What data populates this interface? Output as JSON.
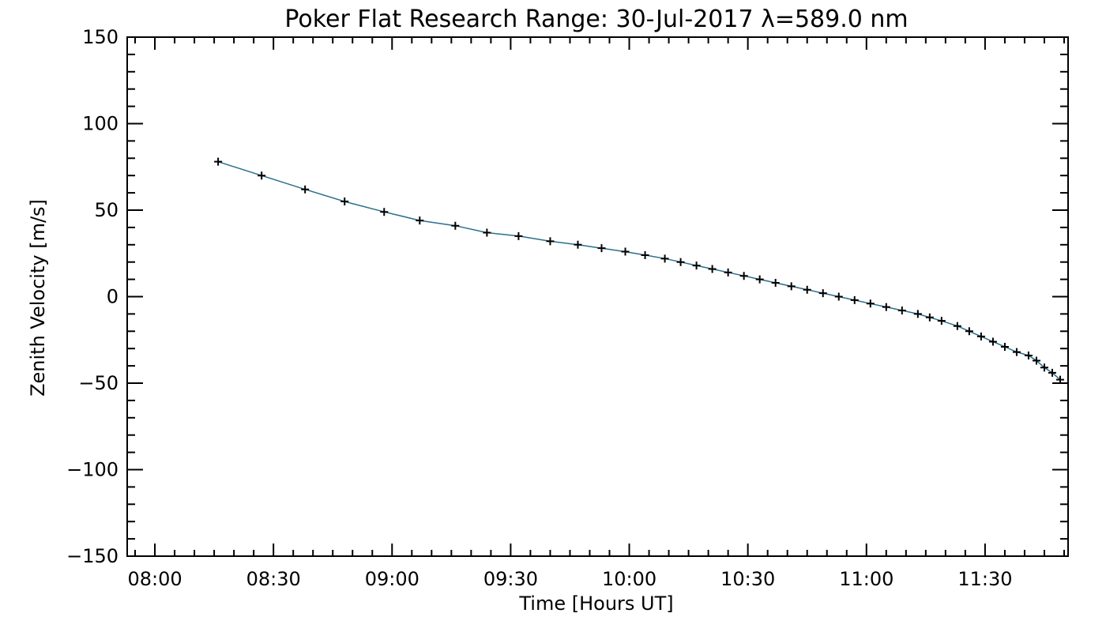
{
  "chart_data": {
    "type": "line",
    "title": "Poker Flat Research Range: 30-Jul-2017 λ=589.0 nm",
    "xlabel": "Time [Hours UT]",
    "ylabel": "Zenith Velocity [m/s]",
    "xlim_minutes": [
      473,
      711
    ],
    "ylim": [
      -150,
      150
    ],
    "x_ticks": [
      "08:00",
      "08:30",
      "09:00",
      "09:30",
      "10:00",
      "10:30",
      "11:00",
      "11:30"
    ],
    "x_tick_minutes": [
      480,
      510,
      540,
      570,
      600,
      630,
      660,
      690
    ],
    "y_ticks": [
      150,
      100,
      50,
      0,
      -50,
      -100,
      -150
    ],
    "y_tick_labels": [
      "150",
      "100",
      "50",
      "0",
      "−50",
      "−100",
      "−150"
    ],
    "line_color": "#2a6f8a",
    "marker": "+",
    "series": [
      {
        "name": "Zenith Velocity",
        "x_minutes": [
          496,
          507,
          518,
          528,
          538,
          547,
          556,
          564,
          572,
          580,
          587,
          593,
          599,
          604,
          609,
          613,
          617,
          621,
          625,
          629,
          633,
          637,
          641,
          645,
          649,
          653,
          657,
          661,
          665,
          669,
          673,
          676,
          679,
          683,
          686,
          689,
          692,
          695,
          698,
          701,
          703,
          705,
          707,
          709
        ],
        "y": [
          78,
          70,
          62,
          55,
          49,
          44,
          41,
          37,
          35,
          32,
          30,
          28,
          26,
          24,
          22,
          20,
          18,
          16,
          14,
          12,
          10,
          8,
          6,
          4,
          2,
          0,
          -2,
          -4,
          -6,
          -8,
          -10,
          -12,
          -14,
          -17,
          -20,
          -23,
          -26,
          -29,
          -32,
          -34,
          -37,
          -41,
          -44,
          -48
        ]
      }
    ]
  }
}
